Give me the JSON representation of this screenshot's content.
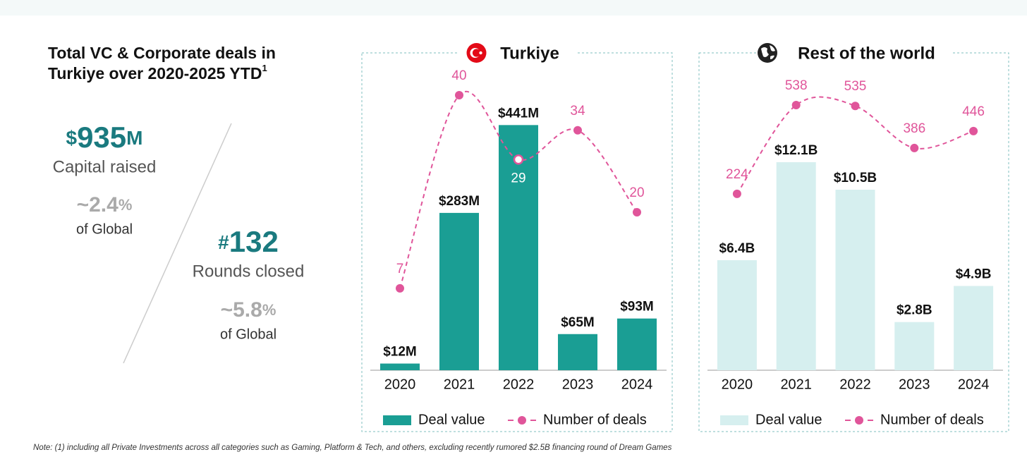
{
  "title_lines": [
    "Total VC & Corporate deals in",
    "Turkiye over 2020-2025 YTD"
  ],
  "title_footnote": "1",
  "stats": [
    {
      "prefix": "$",
      "value": 935,
      "suffix": "M",
      "label": "Capital raised",
      "share": "~2.4",
      "share_unit": "%",
      "share_label": "of Global"
    },
    {
      "prefix": "#",
      "value": 132,
      "suffix": "",
      "label": "Rounds closed",
      "share": "~5.8",
      "share_unit": "%",
      "share_label": "of Global"
    }
  ],
  "note": "Note: (1) including all Private Investments across all categories such as Gaming, Platform & Tech, and others, excluding recently rumored $2.5B financing round of Dream Games",
  "chart_data": [
    {
      "type": "bar",
      "title": "Turkiye",
      "categories": [
        "2020",
        "2021",
        "2022",
        "2023",
        "2024"
      ],
      "ylim": [
        0,
        600
      ],
      "y2lim": [
        -7,
        50
      ],
      "series": [
        {
          "name": "Deal value",
          "color": "#1a9e94",
          "values": [
            12,
            283,
            441,
            65,
            93
          ],
          "value_labels": [
            "$12M",
            "$283M",
            "$441M",
            "$65M",
            "$93M"
          ]
        },
        {
          "name": "Number of deals",
          "type": "line",
          "axis": "y2",
          "color": "#e0559a",
          "values": [
            7,
            40,
            29,
            34,
            20
          ]
        }
      ]
    },
    {
      "type": "bar",
      "title": "Rest of the world",
      "categories": [
        "2020",
        "2021",
        "2022",
        "2023",
        "2024"
      ],
      "ylim": [
        0,
        19.4
      ],
      "y2lim": [
        -400,
        780
      ],
      "series": [
        {
          "name": "Deal value",
          "color": "#d6efef",
          "values": [
            6.4,
            12.1,
            10.5,
            2.8,
            4.9
          ],
          "value_labels": [
            "$6.4B",
            "$12.1B",
            "$10.5B",
            "$2.8B",
            "$4.9B"
          ]
        },
        {
          "name": "Number of deals",
          "type": "line",
          "axis": "y2",
          "color": "#e0559a",
          "values": [
            224,
            538,
            535,
            386,
            446
          ]
        }
      ]
    }
  ]
}
